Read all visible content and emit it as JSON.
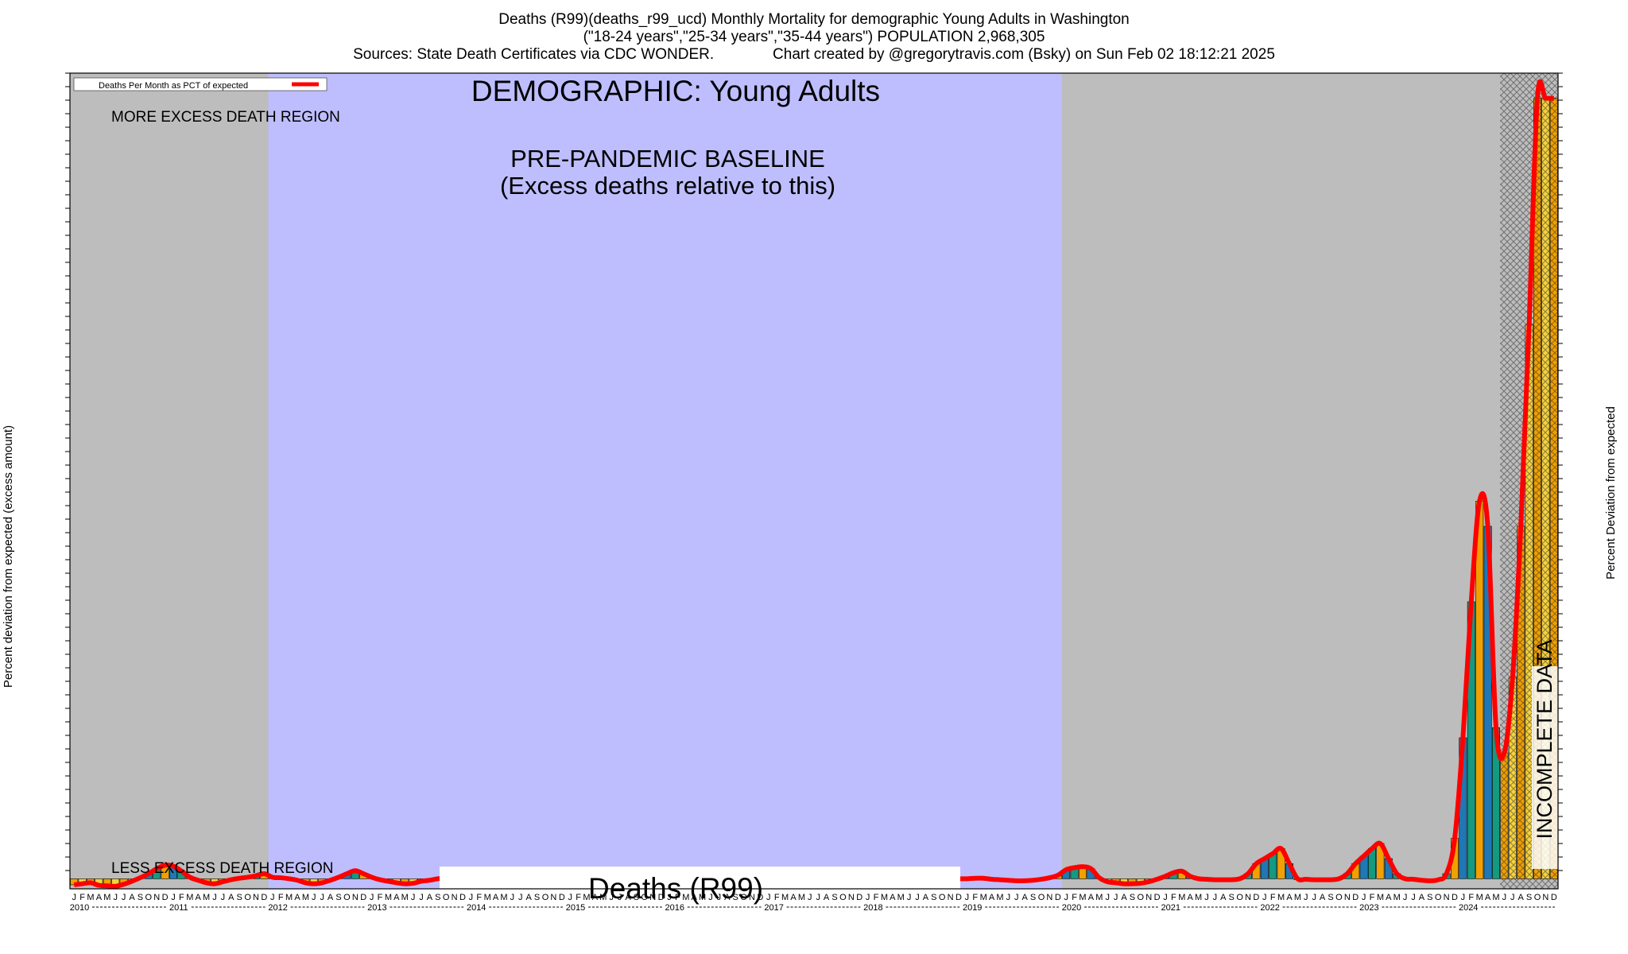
{
  "header": {
    "line1": "Deaths (R99)(deaths_r99_ucd) Monthly Mortality for demographic Young Adults in Washington",
    "line2": "(\"18-24 years\",\"25-34 years\",\"35-44 years\") POPULATION 2,968,305",
    "line3_left": "Sources: State Death Certificates via CDC WONDER.",
    "line3_right": "Chart created by @gregorytravis.com (Bsky) on Sun Feb 02 18:12:21 2025"
  },
  "chart_data": {
    "type": "bar",
    "title": "DEMOGRAPHIC: Young Adults",
    "baseline_label_1": "PRE-PANDEMIC BASELINE",
    "baseline_label_2": "(Excess deaths relative to this)",
    "more_region_label": "MORE EXCESS DEATH REGION",
    "less_region_label": "LESS EXCESS DEATH REGION",
    "incomplete_label": "INCOMPLETE DATA",
    "banner_label": "Deaths (R99)",
    "legend_label": "Deaths Per Month as PCT of expected",
    "ylabel_left": "Percent deviation from expected (excess amount)",
    "ylabel_right": "Percent Deviation from expected",
    "month_letters": [
      "J",
      "F",
      "M",
      "A",
      "M",
      "J",
      "J",
      "A",
      "S",
      "O",
      "N",
      "D"
    ],
    "years": [
      "2010",
      "2011",
      "2012",
      "2013",
      "2014",
      "2015",
      "2016",
      "2017",
      "2018",
      "2019",
      "2020",
      "2021",
      "2022",
      "2023",
      "2024"
    ],
    "baseline_years": [
      "2012",
      "2019"
    ],
    "incomplete_from_month": "2024-06",
    "y_range": [
      -20,
      1600
    ],
    "colors": {
      "background_gray": "#bdbdbd",
      "baseline_blue": "#bebeff",
      "line_red": "#ff0000",
      "bar_blue": "#1f77b4",
      "bar_teal": "#139a80",
      "bar_orange": "#f0a000",
      "bar_yellow": "#f6d33c",
      "bar_navy": "#2b3f8a"
    },
    "series": [
      {
        "name": "Deaths Per Month as PCT of expected",
        "values": [
          -12,
          -10,
          -8,
          -13,
          -14,
          -15,
          -11,
          -5,
          2,
          10,
          20,
          27,
          25,
          15,
          3,
          -3,
          -8,
          -10,
          -6,
          -2,
          1,
          3,
          6,
          10,
          3,
          2,
          0,
          -3,
          -8,
          -10,
          -8,
          -3,
          3,
          10,
          16,
          10,
          3,
          -2,
          -5,
          -8,
          -10,
          -9,
          -5,
          -3,
          0,
          2,
          3,
          2,
          5,
          8,
          12,
          15,
          17,
          18,
          15,
          10,
          8,
          5,
          3,
          2,
          5,
          10,
          12,
          12,
          10,
          8,
          5,
          3,
          2,
          0,
          -2,
          -5,
          -3,
          0,
          3,
          5,
          5,
          3,
          2,
          0,
          -2,
          -5,
          -8,
          -10,
          -12,
          -15,
          -18,
          -17,
          -13,
          -10,
          -8,
          -5,
          -3,
          0,
          3,
          5,
          3,
          0,
          -2,
          -3,
          -2,
          0,
          3,
          5,
          5,
          3,
          1,
          0,
          0,
          1,
          1,
          -1,
          -2,
          -3,
          -4,
          -4,
          -3,
          -1,
          2,
          7,
          18,
          22,
          24,
          20,
          2,
          -6,
          -8,
          -10,
          -10,
          -9,
          -6,
          -1,
          5,
          12,
          15,
          5,
          0,
          -1,
          -2,
          -2,
          -2,
          0,
          10,
          30,
          40,
          50,
          60,
          30,
          0,
          -1,
          -2,
          -2,
          -2,
          0,
          10,
          30,
          45,
          60,
          70,
          40,
          10,
          0,
          -1,
          -3,
          -4,
          -2,
          10,
          80,
          280,
          550,
          750,
          700,
          300,
          250,
          400,
          700,
          1100,
          1550,
          1550,
          1550
        ]
      }
    ]
  }
}
